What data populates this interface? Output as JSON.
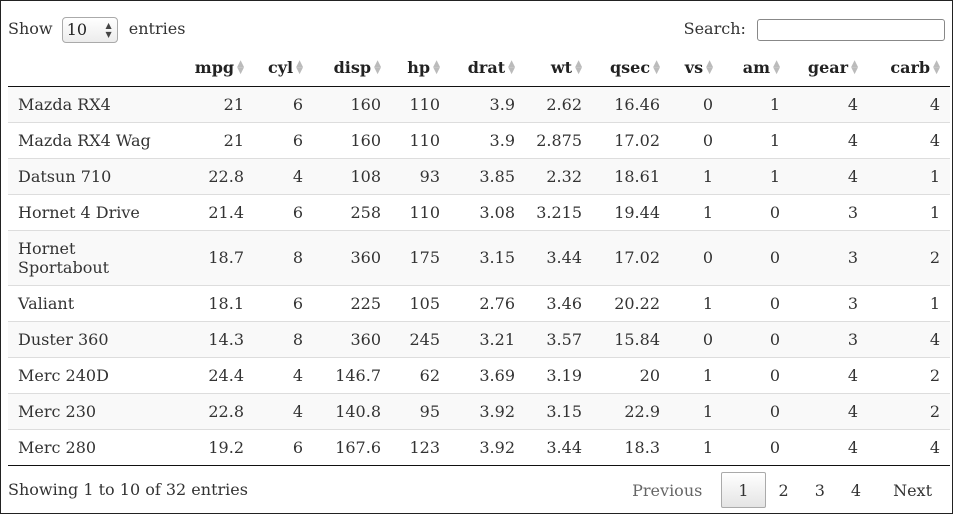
{
  "length": {
    "show_label": "Show",
    "value": "10",
    "entries_label": "entries"
  },
  "search": {
    "label": "Search:",
    "value": ""
  },
  "columns": [
    "",
    "mpg",
    "cyl",
    "disp",
    "hp",
    "drat",
    "wt",
    "qsec",
    "vs",
    "am",
    "gear",
    "carb"
  ],
  "rows": [
    [
      "Mazda RX4",
      "21",
      "6",
      "160",
      "110",
      "3.9",
      "2.62",
      "16.46",
      "0",
      "1",
      "4",
      "4"
    ],
    [
      "Mazda RX4 Wag",
      "21",
      "6",
      "160",
      "110",
      "3.9",
      "2.875",
      "17.02",
      "0",
      "1",
      "4",
      "4"
    ],
    [
      "Datsun 710",
      "22.8",
      "4",
      "108",
      "93",
      "3.85",
      "2.32",
      "18.61",
      "1",
      "1",
      "4",
      "1"
    ],
    [
      "Hornet 4 Drive",
      "21.4",
      "6",
      "258",
      "110",
      "3.08",
      "3.215",
      "19.44",
      "1",
      "0",
      "3",
      "1"
    ],
    [
      "Hornet Sportabout",
      "18.7",
      "8",
      "360",
      "175",
      "3.15",
      "3.44",
      "17.02",
      "0",
      "0",
      "3",
      "2"
    ],
    [
      "Valiant",
      "18.1",
      "6",
      "225",
      "105",
      "2.76",
      "3.46",
      "20.22",
      "1",
      "0",
      "3",
      "1"
    ],
    [
      "Duster 360",
      "14.3",
      "8",
      "360",
      "245",
      "3.21",
      "3.57",
      "15.84",
      "0",
      "0",
      "3",
      "4"
    ],
    [
      "Merc 240D",
      "24.4",
      "4",
      "146.7",
      "62",
      "3.69",
      "3.19",
      "20",
      "1",
      "0",
      "4",
      "2"
    ],
    [
      "Merc 230",
      "22.8",
      "4",
      "140.8",
      "95",
      "3.92",
      "3.15",
      "22.9",
      "1",
      "0",
      "4",
      "2"
    ],
    [
      "Merc 280",
      "19.2",
      "6",
      "167.6",
      "123",
      "3.92",
      "3.44",
      "18.3",
      "1",
      "0",
      "4",
      "4"
    ]
  ],
  "info": "Showing 1 to 10 of 32 entries",
  "pagination": {
    "previous": "Previous",
    "pages": [
      "1",
      "2",
      "3",
      "4"
    ],
    "current": "1",
    "next": "Next"
  }
}
